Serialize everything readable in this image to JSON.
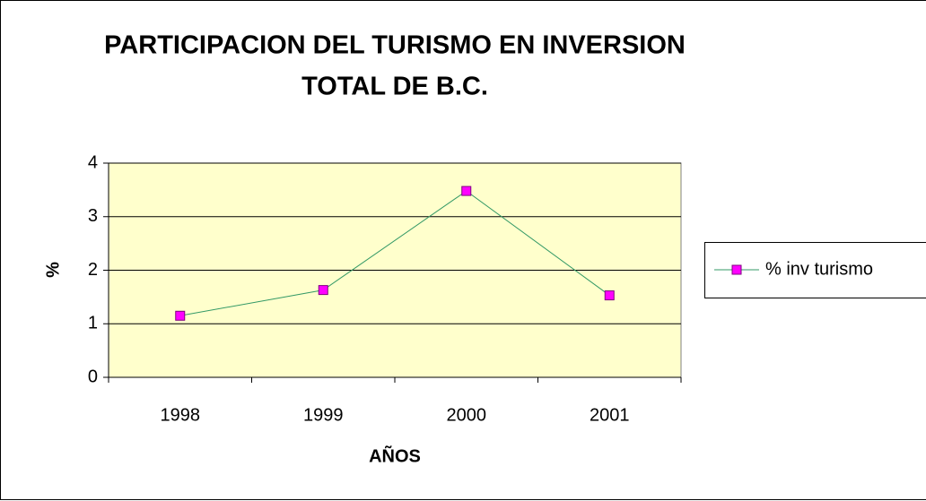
{
  "chart_data": {
    "type": "line",
    "title": [
      "PARTICIPACION DEL TURISMO EN INVERSION",
      "TOTAL DE B.C."
    ],
    "x_label": "AÑOS",
    "y_label": "%",
    "categories": [
      "1998",
      "1999",
      "2000",
      "2001"
    ],
    "series": [
      {
        "name": "% inv turismo",
        "color": "#339966",
        "marker_color": "#ff00ff",
        "values": [
          1.15,
          1.63,
          3.48,
          1.53
        ]
      }
    ],
    "ylim": [
      0,
      4
    ],
    "yticks": [
      0,
      1,
      2,
      3,
      4
    ],
    "grid": true,
    "legend": "right",
    "background": "#ffffcc"
  }
}
